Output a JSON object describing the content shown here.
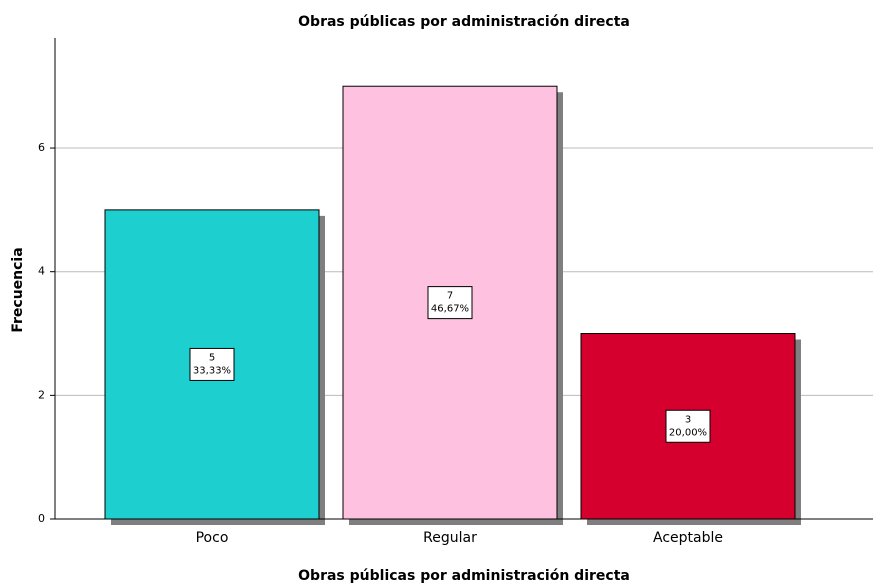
{
  "chart_data": {
    "type": "bar",
    "title": "Obras públicas por administración directa",
    "x_label": "Obras públicas por administración directa",
    "y_label": "Frecuencia",
    "categories": [
      "Poco",
      "Regular",
      "Aceptable"
    ],
    "values": [
      5,
      7,
      3
    ],
    "percentages": [
      33.33,
      46.67,
      20.0
    ],
    "percentage_labels": [
      "33,33%",
      "46,67%",
      "20,00%"
    ],
    "colors": [
      "#1ecfcf",
      "#fec1e0",
      "#d6002f"
    ],
    "ylim": [
      0,
      7.78
    ],
    "yticks": [
      0,
      2,
      4,
      6
    ],
    "grid": true
  }
}
